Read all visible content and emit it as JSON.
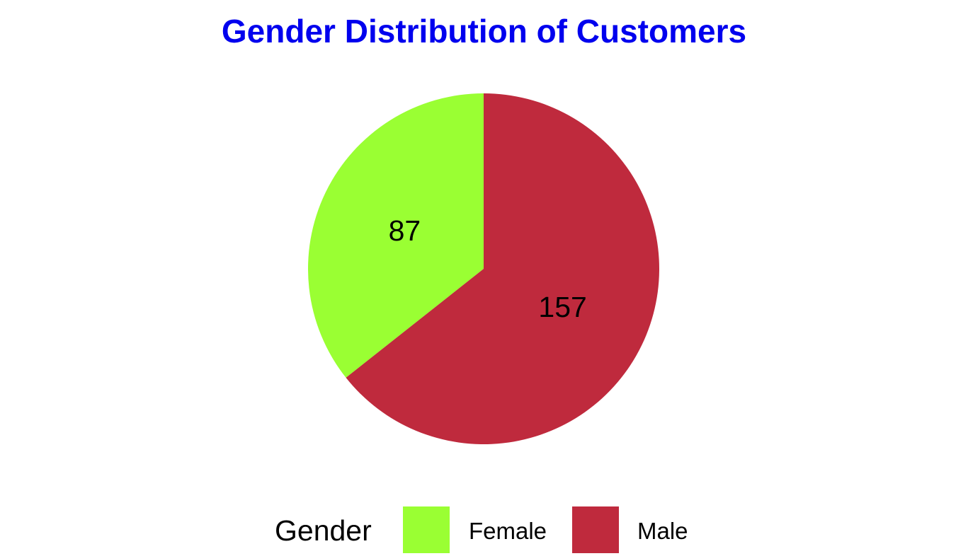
{
  "chart_data": {
    "type": "pie",
    "title": "Gender Distribution of Customers",
    "categories": [
      "Female",
      "Male"
    ],
    "values": [
      87,
      157
    ],
    "colors": [
      "#9AFF33",
      "#BF2A3D"
    ],
    "data_labels": [
      "87",
      "157"
    ],
    "start_angle": "top (12 o'clock)",
    "direction": "counter-clockwise",
    "legend": {
      "title": "Gender",
      "placement": "bottom",
      "entries": [
        "Female",
        "Male"
      ]
    }
  },
  "title_color": "#0000EE"
}
